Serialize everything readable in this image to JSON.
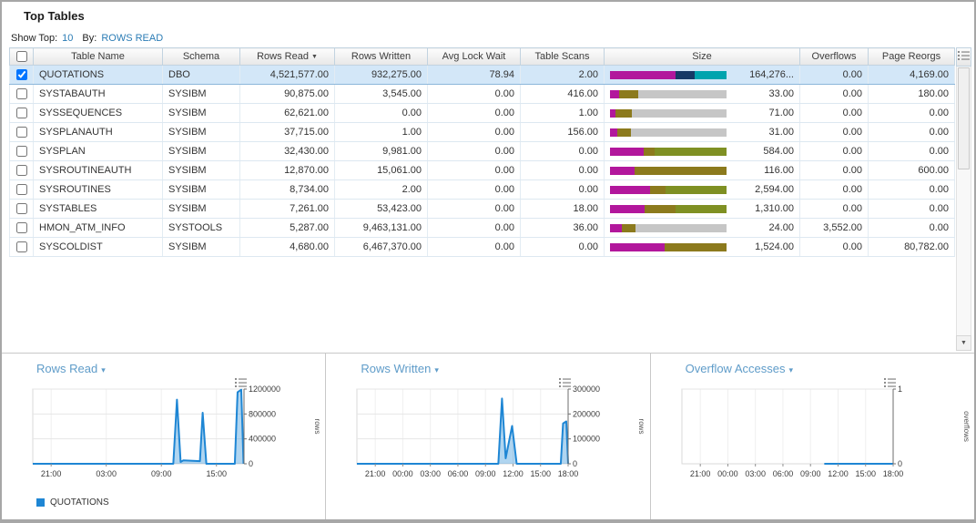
{
  "header": {
    "title": "Top Tables"
  },
  "controls": {
    "show_top_label": "Show Top:",
    "show_top_value": "10",
    "by_label": "By:",
    "by_value": "ROWS READ"
  },
  "table": {
    "select_all_checked": false,
    "columns": [
      {
        "label": "Table Name"
      },
      {
        "label": "Schema"
      },
      {
        "label": "Rows Read",
        "sorted": "desc"
      },
      {
        "label": "Rows Written"
      },
      {
        "label": "Avg Lock Wait"
      },
      {
        "label": "Table Scans"
      },
      {
        "label": "Size"
      },
      {
        "label": "Overflows"
      },
      {
        "label": "Page Reorgs"
      }
    ],
    "rows": [
      {
        "checked": true,
        "selected": true,
        "name": "QUOTATIONS",
        "schema": "DBO",
        "rows_read": "4,521,577.00",
        "rows_written": "932,275.00",
        "avg_lock_wait": "78.94",
        "table_scans": "2.00",
        "size_value": "164,276...",
        "size_bar": [
          {
            "color": "#b2179c",
            "pct": 56
          },
          {
            "color": "#173a66",
            "pct": 17
          },
          {
            "color": "#00a4ae",
            "pct": 27
          }
        ],
        "overflows": "0.00",
        "page_reorgs": "4,169.00"
      },
      {
        "checked": false,
        "selected": false,
        "name": "SYSTABAUTH",
        "schema": "SYSIBM",
        "rows_read": "90,875.00",
        "rows_written": "3,545.00",
        "avg_lock_wait": "0.00",
        "table_scans": "416.00",
        "size_value": "33.00",
        "size_bar": [
          {
            "color": "#b2179c",
            "pct": 8
          },
          {
            "color": "#8c7a1d",
            "pct": 16
          },
          {
            "color": "#c6c6c6",
            "pct": 76
          }
        ],
        "overflows": "0.00",
        "page_reorgs": "180.00"
      },
      {
        "checked": false,
        "selected": false,
        "name": "SYSSEQUENCES",
        "schema": "SYSIBM",
        "rows_read": "62,621.00",
        "rows_written": "0.00",
        "avg_lock_wait": "0.00",
        "table_scans": "1.00",
        "size_value": "71.00",
        "size_bar": [
          {
            "color": "#b2179c",
            "pct": 5
          },
          {
            "color": "#8c7a1d",
            "pct": 14
          },
          {
            "color": "#c6c6c6",
            "pct": 81
          }
        ],
        "overflows": "0.00",
        "page_reorgs": "0.00"
      },
      {
        "checked": false,
        "selected": false,
        "name": "SYSPLANAUTH",
        "schema": "SYSIBM",
        "rows_read": "37,715.00",
        "rows_written": "1.00",
        "avg_lock_wait": "0.00",
        "table_scans": "156.00",
        "size_value": "31.00",
        "size_bar": [
          {
            "color": "#b2179c",
            "pct": 6
          },
          {
            "color": "#8c7a1d",
            "pct": 12
          },
          {
            "color": "#c6c6c6",
            "pct": 82
          }
        ],
        "overflows": "0.00",
        "page_reorgs": "0.00"
      },
      {
        "checked": false,
        "selected": false,
        "name": "SYSPLAN",
        "schema": "SYSIBM",
        "rows_read": "32,430.00",
        "rows_written": "9,981.00",
        "avg_lock_wait": "0.00",
        "table_scans": "0.00",
        "size_value": "584.00",
        "size_bar": [
          {
            "color": "#b2179c",
            "pct": 29
          },
          {
            "color": "#8c7a1d",
            "pct": 9
          },
          {
            "color": "#7f9023",
            "pct": 62
          }
        ],
        "overflows": "0.00",
        "page_reorgs": "0.00"
      },
      {
        "checked": false,
        "selected": false,
        "name": "SYSROUTINEAUTH",
        "schema": "SYSIBM",
        "rows_read": "12,870.00",
        "rows_written": "15,061.00",
        "avg_lock_wait": "0.00",
        "table_scans": "0.00",
        "size_value": "116.00",
        "size_bar": [
          {
            "color": "#b2179c",
            "pct": 21
          },
          {
            "color": "#8c7a1d",
            "pct": 79
          }
        ],
        "overflows": "0.00",
        "page_reorgs": "600.00"
      },
      {
        "checked": false,
        "selected": false,
        "name": "SYSROUTINES",
        "schema": "SYSIBM",
        "rows_read": "8,734.00",
        "rows_written": "2.00",
        "avg_lock_wait": "0.00",
        "table_scans": "0.00",
        "size_value": "2,594.00",
        "size_bar": [
          {
            "color": "#b2179c",
            "pct": 34
          },
          {
            "color": "#8c7a1d",
            "pct": 14
          },
          {
            "color": "#7f9023",
            "pct": 52
          }
        ],
        "overflows": "0.00",
        "page_reorgs": "0.00"
      },
      {
        "checked": false,
        "selected": false,
        "name": "SYSTABLES",
        "schema": "SYSIBM",
        "rows_read": "7,261.00",
        "rows_written": "53,423.00",
        "avg_lock_wait": "0.00",
        "table_scans": "18.00",
        "size_value": "1,310.00",
        "size_bar": [
          {
            "color": "#b2179c",
            "pct": 30
          },
          {
            "color": "#8c7a1d",
            "pct": 26
          },
          {
            "color": "#7f9023",
            "pct": 44
          }
        ],
        "overflows": "0.00",
        "page_reorgs": "0.00"
      },
      {
        "checked": false,
        "selected": false,
        "name": "HMON_ATM_INFO",
        "schema": "SYSTOOLS",
        "rows_read": "5,287.00",
        "rows_written": "9,463,131.00",
        "avg_lock_wait": "0.00",
        "table_scans": "36.00",
        "size_value": "24.00",
        "size_bar": [
          {
            "color": "#b2179c",
            "pct": 10
          },
          {
            "color": "#8c7a1d",
            "pct": 12
          },
          {
            "color": "#c6c6c6",
            "pct": 78
          }
        ],
        "overflows": "3,552.00",
        "page_reorgs": "0.00"
      },
      {
        "checked": false,
        "selected": false,
        "name": "SYSCOLDIST",
        "schema": "SYSIBM",
        "rows_read": "4,680.00",
        "rows_written": "6,467,370.00",
        "avg_lock_wait": "0.00",
        "table_scans": "0.00",
        "size_value": "1,524.00",
        "size_bar": [
          {
            "color": "#b2179c",
            "pct": 47
          },
          {
            "color": "#8c7a1d",
            "pct": 53
          }
        ],
        "overflows": "0.00",
        "page_reorgs": "80,782.00"
      }
    ]
  },
  "chart_data": [
    {
      "type": "area",
      "title": "Rows Read",
      "ylabel": "rows",
      "xlim": [
        0,
        23
      ],
      "ylim": [
        0,
        1200000
      ],
      "yticks": [
        {
          "v": 0,
          "label": "0"
        },
        {
          "v": 400000,
          "label": "400000"
        },
        {
          "v": 800000,
          "label": "800000"
        },
        {
          "v": 1200000,
          "label": "1200000"
        }
      ],
      "xticks": [
        {
          "t": 2,
          "label": "21:00"
        },
        {
          "t": 8,
          "label": "03:00"
        },
        {
          "t": 14,
          "label": "09:00"
        },
        {
          "t": 20,
          "label": "15:00"
        }
      ],
      "series": [
        {
          "name": "QUOTATIONS",
          "color": "#1e86d4",
          "points": [
            [
              0,
              0
            ],
            [
              15.3,
              0
            ],
            [
              15.7,
              1030000
            ],
            [
              16.1,
              30000
            ],
            [
              16.4,
              55000
            ],
            [
              18.2,
              42000
            ],
            [
              18.5,
              820000
            ],
            [
              18.9,
              0
            ],
            [
              22.0,
              0
            ],
            [
              22.3,
              1150000
            ],
            [
              22.7,
              1190000
            ],
            [
              22.95,
              0
            ]
          ]
        }
      ],
      "legend": [
        "QUOTATIONS"
      ]
    },
    {
      "type": "area",
      "title": "Rows Written",
      "ylabel": "rows",
      "xlim": [
        0,
        23
      ],
      "ylim": [
        0,
        300000
      ],
      "yticks": [
        {
          "v": 0,
          "label": "0"
        },
        {
          "v": 100000,
          "label": "100000"
        },
        {
          "v": 200000,
          "label": "200000"
        },
        {
          "v": 300000,
          "label": "300000"
        }
      ],
      "xticks": [
        {
          "t": 2,
          "label": "21:00"
        },
        {
          "t": 5,
          "label": "00:00"
        },
        {
          "t": 8,
          "label": "03:00"
        },
        {
          "t": 11,
          "label": "06:00"
        },
        {
          "t": 14,
          "label": "09:00"
        },
        {
          "t": 17,
          "label": "12:00"
        },
        {
          "t": 20,
          "label": "15:00"
        },
        {
          "t": 23,
          "label": "18:00"
        }
      ],
      "series": [
        {
          "name": "QUOTATIONS",
          "color": "#1e86d4",
          "points": [
            [
              0,
              0
            ],
            [
              15.4,
              0
            ],
            [
              15.8,
              262000
            ],
            [
              16.2,
              22000
            ],
            [
              16.9,
              152000
            ],
            [
              17.4,
              0
            ],
            [
              22.2,
              0
            ],
            [
              22.45,
              162000
            ],
            [
              22.8,
              170000
            ],
            [
              23,
              0
            ]
          ]
        }
      ]
    },
    {
      "type": "line",
      "title": "Overflow Accesses",
      "ylabel": "overflows",
      "xlim": [
        0,
        23
      ],
      "ylim": [
        0,
        1
      ],
      "yticks": [
        {
          "v": 0,
          "label": "0"
        },
        {
          "v": 1,
          "label": "1"
        }
      ],
      "xticks": [
        {
          "t": 2,
          "label": "21:00"
        },
        {
          "t": 5,
          "label": "00:00"
        },
        {
          "t": 8,
          "label": "03:00"
        },
        {
          "t": 11,
          "label": "06:00"
        },
        {
          "t": 14,
          "label": "09:00"
        },
        {
          "t": 17,
          "label": "12:00"
        },
        {
          "t": 20,
          "label": "15:00"
        },
        {
          "t": 23,
          "label": "18:00"
        }
      ],
      "series": [
        {
          "name": "QUOTATIONS",
          "color": "#1e86d4",
          "points": [
            [
              15.5,
              0
            ],
            [
              23,
              0
            ]
          ]
        }
      ]
    }
  ]
}
